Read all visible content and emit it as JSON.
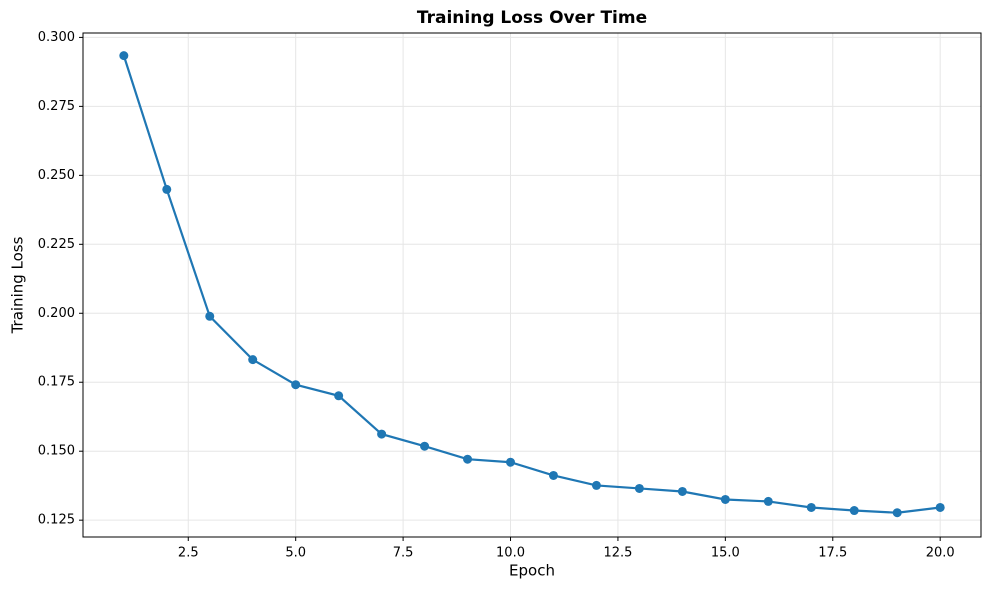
{
  "chart_data": {
    "type": "line",
    "title": "Training Loss Over Time",
    "xlabel": "Epoch",
    "ylabel": "Training Loss",
    "x": [
      1,
      2,
      3,
      4,
      5,
      6,
      7,
      8,
      9,
      10,
      11,
      12,
      13,
      14,
      15,
      16,
      17,
      18,
      19,
      20
    ],
    "series": [
      {
        "name": "Training Loss",
        "color": "#1f77b4",
        "values": [
          0.2934,
          0.2449,
          0.1989,
          0.1832,
          0.1741,
          0.1701,
          0.1562,
          0.1518,
          0.1471,
          0.146,
          0.1412,
          0.1376,
          0.1365,
          0.1354,
          0.1325,
          0.1318,
          0.1296,
          0.1285,
          0.1277,
          0.1296
        ]
      }
    ],
    "xlim": [
      0.05,
      20.95
    ],
    "xticks": [
      2.5,
      {
        "value": 5,
        "label": "5.0"
      },
      7.5,
      {
        "value": 10,
        "label": "10.0"
      },
      12.5,
      {
        "value": 15,
        "label": "15.0"
      },
      17.5,
      {
        "value": 20,
        "label": "20.0"
      }
    ],
    "ylim": [
      0.1189,
      0.3016
    ],
    "yticks": [
      0.125,
      {
        "value": 0.15,
        "label": "0.150"
      },
      0.175,
      {
        "value": 0.2,
        "label": "0.200"
      },
      0.225,
      {
        "value": 0.25,
        "label": "0.250"
      },
      0.275,
      {
        "value": 0.3,
        "label": "0.300"
      }
    ],
    "grid": true
  }
}
